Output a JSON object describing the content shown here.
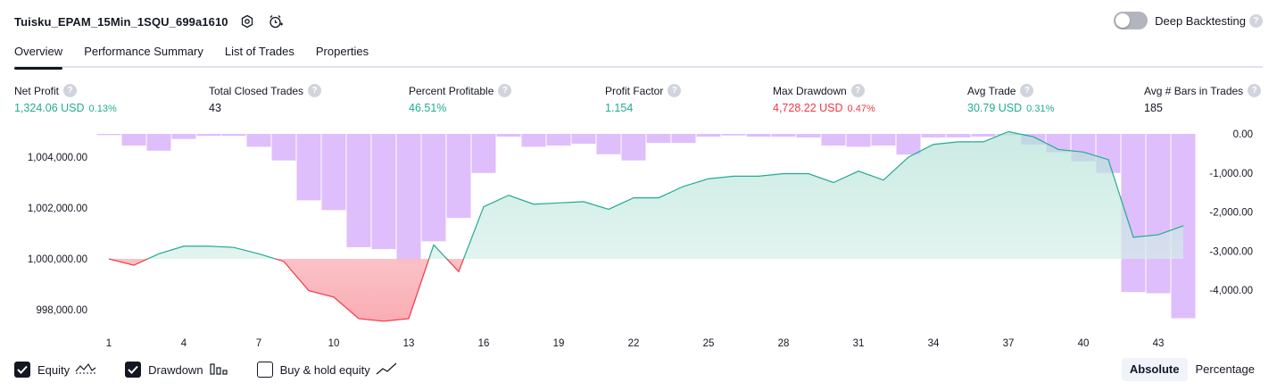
{
  "header": {
    "title": "Tuisku_EPAM_15Min_1SQU_699a1610",
    "deep_backtesting_label": "Deep Backtesting",
    "deep_backtesting_enabled": false,
    "help_glyph": "?"
  },
  "tabs": [
    {
      "label": "Overview",
      "active": true
    },
    {
      "label": "Performance Summary",
      "active": false
    },
    {
      "label": "List of Trades",
      "active": false
    },
    {
      "label": "Properties",
      "active": false
    }
  ],
  "metrics": {
    "net_profit": {
      "label": "Net Profit",
      "value": "1,324.06 USD",
      "pct": "0.13%"
    },
    "total_closed_trades": {
      "label": "Total Closed Trades",
      "value": "43"
    },
    "percent_profitable": {
      "label": "Percent Profitable",
      "value": "46.51%"
    },
    "profit_factor": {
      "label": "Profit Factor",
      "value": "1.154"
    },
    "max_drawdown": {
      "label": "Max Drawdown",
      "value": "4,728.22 USD",
      "pct": "0.47%"
    },
    "avg_trade": {
      "label": "Avg Trade",
      "value": "30.79 USD",
      "pct": "0.31%"
    },
    "avg_bars": {
      "label": "Avg # Bars in Trades",
      "value": "185"
    }
  },
  "chart_data": {
    "type": "line",
    "x_tick_labels": [
      "1",
      "4",
      "7",
      "10",
      "13",
      "16",
      "19",
      "22",
      "25",
      "28",
      "31",
      "34",
      "37",
      "40",
      "43"
    ],
    "left_axis_labels": [
      "1,004,000.00",
      "1,002,000.00",
      "1,000,000.00",
      "998,000.00"
    ],
    "right_axis_labels": [
      "0.00",
      "-1,000.00",
      "-2,000.00",
      "-3,000.00",
      "-4,000.00"
    ],
    "equity_baseline": 1000000,
    "series": [
      {
        "name": "Equity",
        "axis": "left",
        "x": [
          1,
          2,
          3,
          4,
          5,
          6,
          7,
          8,
          9,
          10,
          11,
          12,
          13,
          14,
          15,
          16,
          17,
          18,
          19,
          20,
          21,
          22,
          23,
          24,
          25,
          26,
          27,
          28,
          29,
          30,
          31,
          32,
          33,
          34,
          35,
          36,
          37,
          38,
          39,
          40,
          41,
          42,
          43,
          44
        ],
        "values": [
          1000000,
          999750,
          1000200,
          1000500,
          1000500,
          1000450,
          1000200,
          999900,
          998750,
          998500,
          997650,
          997550,
          997650,
          1000550,
          999500,
          1002050,
          1002500,
          1002150,
          1002200,
          1002250,
          1001950,
          1002400,
          1002400,
          1002850,
          1003150,
          1003250,
          1003250,
          1003350,
          1003350,
          1003000,
          1003450,
          1003100,
          1004000,
          1004500,
          1004600,
          1004600,
          1005000,
          1004800,
          1004300,
          1004200,
          1003900,
          1000850,
          1000950,
          1001300
        ]
      },
      {
        "name": "Drawdown",
        "axis": "right",
        "type": "bar",
        "x": [
          1,
          2,
          3,
          4,
          5,
          6,
          7,
          8,
          9,
          10,
          11,
          12,
          13,
          14,
          15,
          16,
          17,
          18,
          19,
          20,
          21,
          22,
          23,
          24,
          25,
          26,
          27,
          28,
          29,
          30,
          31,
          32,
          33,
          34,
          35,
          36,
          37,
          38,
          39,
          40,
          41,
          42,
          43,
          44
        ],
        "values": [
          -30,
          -300,
          -430,
          -130,
          -50,
          -50,
          -330,
          -680,
          -1700,
          -1950,
          -2900,
          -2950,
          -3300,
          -2750,
          -2150,
          -1000,
          -70,
          -330,
          -300,
          -250,
          -520,
          -680,
          -230,
          -230,
          -70,
          -40,
          -70,
          -70,
          -90,
          -300,
          -330,
          -300,
          -530,
          -90,
          -90,
          -70,
          -30,
          -270,
          -470,
          -700,
          -1000,
          -4050,
          -4080,
          -4720
        ]
      }
    ],
    "ylim_left": [
      997000,
      1005000
    ],
    "ylim_right": [
      -4800,
      0
    ],
    "grid": false,
    "legend": "bottom-left"
  },
  "footer": {
    "checkboxes": [
      {
        "label": "Equity",
        "checked": true,
        "icon": "equity-line-icon"
      },
      {
        "label": "Drawdown",
        "checked": true,
        "icon": "drawdown-bars-icon"
      },
      {
        "label": "Buy & hold equity",
        "checked": false,
        "icon": "buy-hold-line-icon"
      }
    ],
    "view_modes": [
      {
        "label": "Absolute",
        "active": true
      },
      {
        "label": "Percentage",
        "active": false
      }
    ]
  },
  "colors": {
    "positive": "#22ab94",
    "negative": "#f23645",
    "drawdown_bar": "#d9b3fc",
    "equity_fill": "#c8ebe3",
    "loss_fill": "#fbb8bd"
  }
}
